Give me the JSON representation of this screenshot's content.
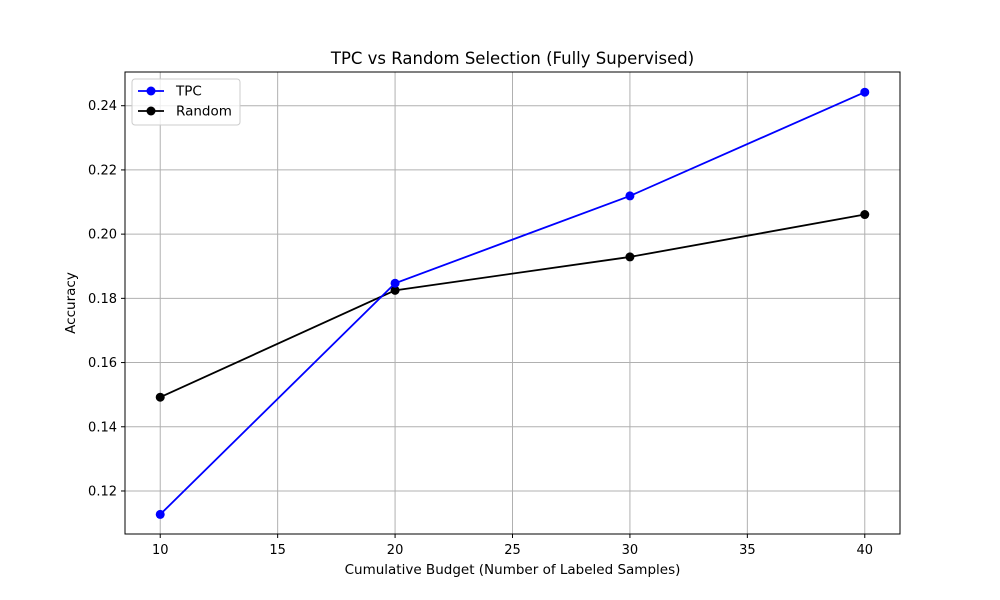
{
  "chart_data": {
    "type": "line",
    "title": "TPC vs Random Selection (Fully Supervised)",
    "xlabel": "Cumulative Budget (Number of Labeled Samples)",
    "ylabel": "Accuracy",
    "x": [
      10,
      20,
      30,
      40
    ],
    "xticks": [
      10,
      15,
      20,
      25,
      30,
      35,
      40
    ],
    "yticks": [
      0.12,
      0.14,
      0.16,
      0.18,
      0.2,
      0.22,
      0.24
    ],
    "xlim": [
      8.5,
      41.5
    ],
    "ylim": [
      0.1066,
      0.2505
    ],
    "grid": true,
    "legend_position": "top-left",
    "series": [
      {
        "name": "TPC",
        "color": "#0000ff",
        "marker": "circle",
        "values": [
          0.1127,
          0.1847,
          0.2119,
          0.2442
        ]
      },
      {
        "name": "Random",
        "color": "#000000",
        "marker": "circle",
        "values": [
          0.1492,
          0.1825,
          0.1929,
          0.2061
        ]
      }
    ]
  }
}
